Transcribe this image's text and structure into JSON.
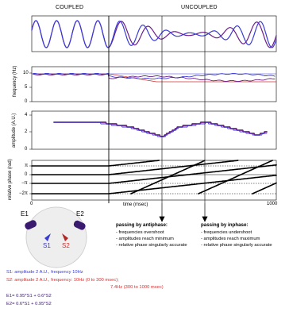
{
  "headers": {
    "coupled": "COUPLED",
    "uncoupled": "UNCOUPLED"
  },
  "axes": {
    "frequency": {
      "label": "frequency (Hz)",
      "ticks": [
        "10",
        "5",
        "0"
      ]
    },
    "amplitude": {
      "label": "amplitude (A.U.)",
      "ticks": [
        "4",
        "2",
        "0"
      ]
    },
    "phase": {
      "label": "relative phase (rad)",
      "ticks": [
        "π",
        "0",
        "−π",
        "−2π"
      ]
    },
    "time": {
      "label": "time (msec)",
      "start": "0",
      "end": "1000"
    }
  },
  "antiphase": {
    "title": "passing by antiphase:",
    "items": [
      "- frequencies overshoot",
      "- amplitudes reach minimum",
      "- relative phase singularly accurate"
    ]
  },
  "inphase": {
    "title": "passing by inphase:",
    "items": [
      "- frequencies undershoot",
      "- amplitudes reach maximum",
      "- relative phase singularly accurate"
    ]
  },
  "diagram": {
    "e1": "E1",
    "e2": "E2",
    "s1": "S1",
    "s2": "S2"
  },
  "legend": {
    "s1": "S1: amplitude 2 A.U., frequency 10Hz",
    "s2_a": "S2: amplitude 2 A.U., frequency: 10Hz (0 to 300 msec);",
    "s2_b": "7.4Hz (300 to 1000 msec)",
    "e1": "E1= 0.95*S1 + 0.6*S2",
    "e2": "E2= 0.6*S1 + 0.95*S2"
  },
  "colors": {
    "blue": "#3a3ad6",
    "purple": "#6a1f8a",
    "red": "#d23030",
    "black": "#000000",
    "electrode": "#3a1a6e",
    "head": "#eeeeee"
  }
}
